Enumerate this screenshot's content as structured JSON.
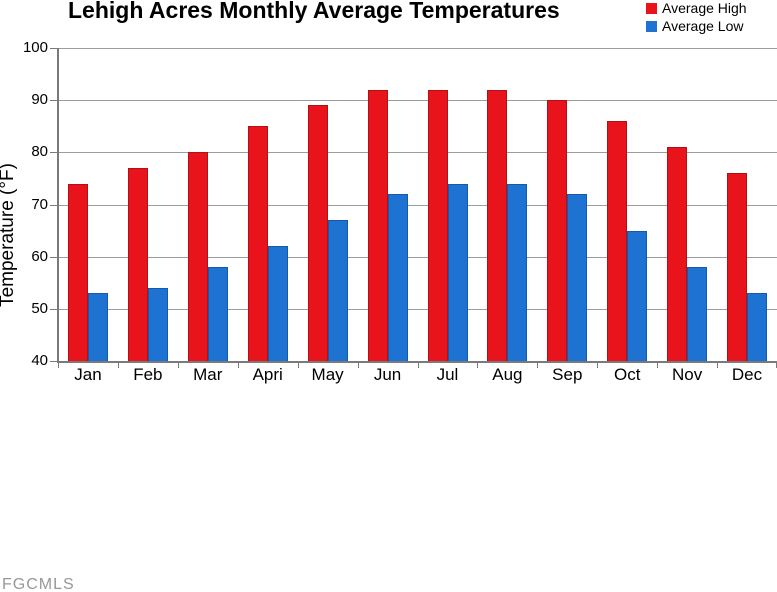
{
  "watermark": "FGCMLS",
  "chart_data": {
    "type": "bar",
    "title": "Lehigh Acres Monthly Average Temperatures",
    "ylabel": "Temperature (°F)",
    "xlabel": "",
    "ylim": [
      40,
      100
    ],
    "ytick_step": 10,
    "grid": true,
    "legend_position": "top-right",
    "categories": [
      "Jan",
      "Feb",
      "Mar",
      "Apri",
      "May",
      "Jun",
      "Jul",
      "Aug",
      "Sep",
      "Oct",
      "Nov",
      "Dec"
    ],
    "series": [
      {
        "name": "Average High",
        "color": "#e8131b",
        "edge_color": "#b11116",
        "values": [
          74,
          77,
          80,
          85,
          89,
          92,
          92,
          92,
          90,
          86,
          81,
          76
        ]
      },
      {
        "name": "Average Low",
        "color": "#1e72d2",
        "edge_color": "#1559a8",
        "values": [
          53,
          54,
          58,
          62,
          67,
          72,
          74,
          74,
          72,
          65,
          58,
          53
        ]
      }
    ],
    "colors": {
      "gridline": "#9c9c9c",
      "axis": "#7a7a7a"
    }
  }
}
